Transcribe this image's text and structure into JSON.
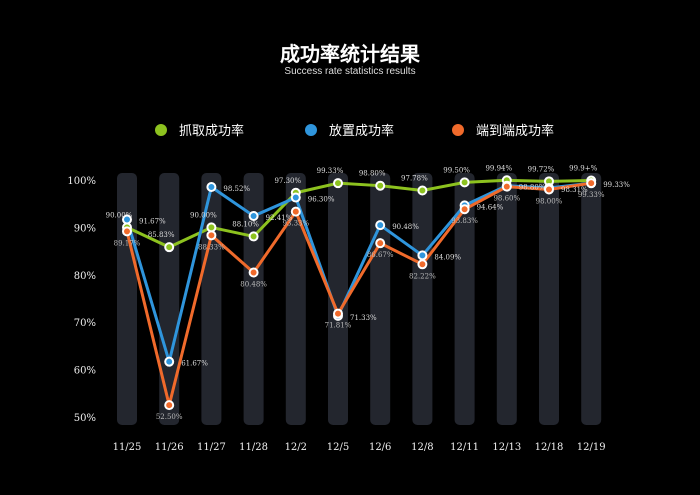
{
  "chart_data": {
    "type": "line",
    "title": "成功率统计结果",
    "subtitle": "Success rate statistics results",
    "categories": [
      "11/25",
      "11/26",
      "11/27",
      "11/28",
      "12/2",
      "12/5",
      "12/6",
      "12/8",
      "12/11",
      "12/13",
      "12/18",
      "12/19"
    ],
    "yticks": [
      "100%",
      "90%",
      "80%",
      "70%",
      "60%",
      "50%"
    ],
    "ylim": [
      50,
      100
    ],
    "legend_position": "top",
    "series": [
      {
        "name": "抓取成功率",
        "color": "#8dc21f",
        "values": [
          90.0,
          85.83,
          90.0,
          88.1,
          97.3,
          99.33,
          98.8,
          97.78,
          99.5,
          99.94,
          99.72,
          99.9
        ],
        "labels": [
          "90.00%",
          "85.83%",
          "90.00%",
          "88.10%",
          "97.30%",
          "99.33%",
          "98.80%",
          "97.78%",
          "99.50%",
          "99.94%",
          "99.72%",
          "99.9+%"
        ]
      },
      {
        "name": "放置成功率",
        "color": "#2f95dc",
        "values": [
          91.67,
          61.67,
          98.52,
          92.41,
          96.3,
          71.33,
          90.48,
          84.09,
          94.64,
          98.8,
          98.31,
          99.33
        ],
        "labels": [
          "91.67%",
          "61.67%",
          "98.52%",
          "92.41%",
          "96.30%",
          "71.33%",
          "90.48%",
          "84.09%",
          "94.64%",
          "98.80%",
          "98.31%",
          "99.33%"
        ]
      },
      {
        "name": "端到端成功率",
        "color": "#f06a2b",
        "values": [
          89.17,
          52.5,
          88.33,
          80.48,
          93.33,
          71.81,
          86.67,
          82.22,
          93.83,
          98.6,
          98.0,
          99.33
        ],
        "labels": [
          "89.17%",
          "52.50%",
          "88.33%",
          "80.48%",
          "93.33%",
          "71.81%",
          "86.67%",
          "82.22%",
          "93.83%",
          "98.60%",
          "98.00%",
          "99.33%"
        ]
      }
    ]
  }
}
